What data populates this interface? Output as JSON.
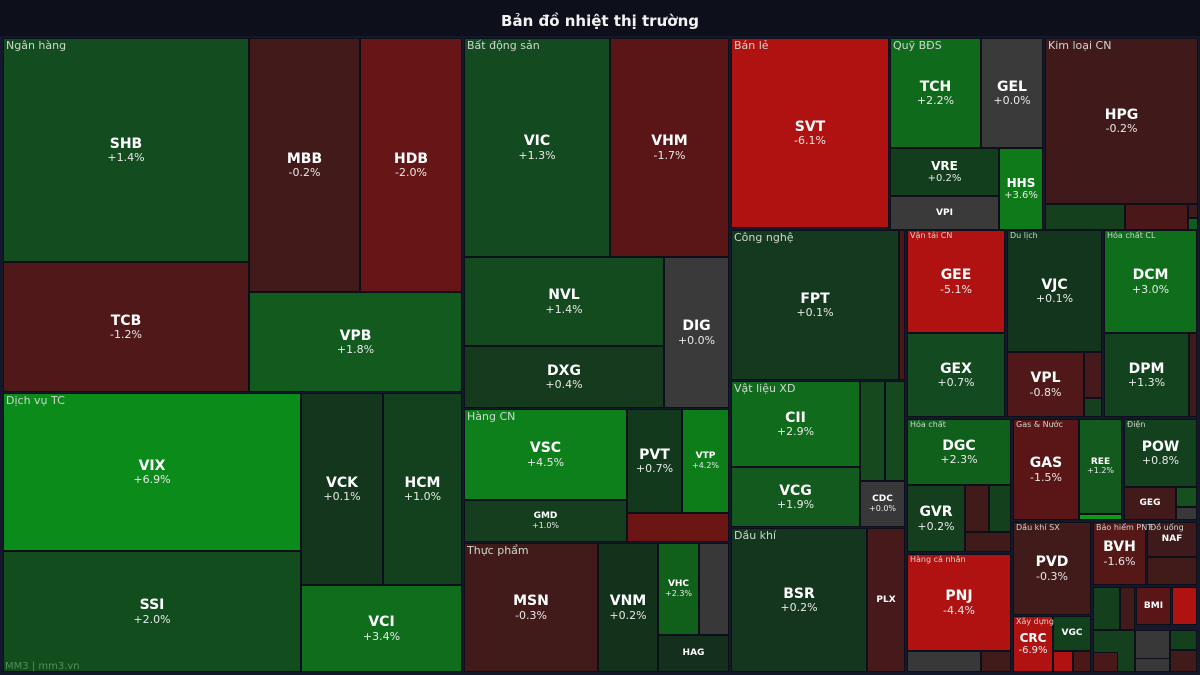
{
  "chart_data": {
    "type": "heatmap",
    "subtype": "treemap",
    "title": "Bản đồ nhiệt thị trường",
    "watermark": "MM3 | mm3.vn",
    "colors": {
      "strong_up": "#0b8c1a",
      "up": "#134d1f",
      "flat": "#3a3a3a",
      "down": "#501818",
      "strong_down": "#b01212"
    },
    "sectors": [
      {
        "name": "Ngân hàng",
        "stocks": [
          {
            "ticker": "SHB",
            "change": "+1.4%",
            "color": "#134d1f"
          },
          {
            "ticker": "MBB",
            "change": "-0.2%",
            "color": "#431a1a"
          },
          {
            "ticker": "HDB",
            "change": "-2.0%",
            "color": "#661616"
          },
          {
            "ticker": "TCB",
            "change": "-1.2%",
            "color": "#501818"
          },
          {
            "ticker": "VPB",
            "change": "+1.8%",
            "color": "#125a1e"
          }
        ]
      },
      {
        "name": "Dịch vụ TC",
        "stocks": [
          {
            "ticker": "VIX",
            "change": "+6.9%",
            "color": "#0b8c1a"
          },
          {
            "ticker": "SSI",
            "change": "+2.0%",
            "color": "#124d1e"
          },
          {
            "ticker": "VCK",
            "change": "+0.1%",
            "color": "#13361d"
          },
          {
            "ticker": "HCM",
            "change": "+1.0%",
            "color": "#13401d"
          },
          {
            "ticker": "VCI",
            "change": "+3.4%",
            "color": "#0f6e1c"
          }
        ]
      },
      {
        "name": "Bất động sản",
        "stocks": [
          {
            "ticker": "VIC",
            "change": "+1.3%",
            "color": "#134a1f"
          },
          {
            "ticker": "VHM",
            "change": "-1.7%",
            "color": "#5a1616"
          },
          {
            "ticker": "NVL",
            "change": "+1.4%",
            "color": "#134a1e"
          },
          {
            "ticker": "DXG",
            "change": "+0.4%",
            "color": "#153a1e"
          },
          {
            "ticker": "DIG",
            "change": "+0.0%",
            "color": "#3a3a3a"
          }
        ]
      },
      {
        "name": "Hàng CN",
        "stocks": [
          {
            "ticker": "VSC",
            "change": "+4.5%",
            "color": "#0d801b"
          },
          {
            "ticker": "GMD",
            "change": "+1.0%",
            "color": "#143e1e"
          },
          {
            "ticker": "PVT",
            "change": "+0.7%",
            "color": "#13391d"
          },
          {
            "ticker": "VTP",
            "change": "+4.2%",
            "color": "#0d7d1a"
          },
          {
            "ticker": "",
            "change": "",
            "color": "#6b1515"
          }
        ]
      },
      {
        "name": "Thực phẩm",
        "stocks": [
          {
            "ticker": "MSN",
            "change": "-0.3%",
            "color": "#411a1a"
          },
          {
            "ticker": "VNM",
            "change": "+0.2%",
            "color": "#13321c"
          },
          {
            "ticker": "VHC",
            "change": "+2.3%",
            "color": "#10601c"
          },
          {
            "ticker": "",
            "change": "",
            "color": "#383838"
          },
          {
            "ticker": "HAG",
            "change": "",
            "color": "#14301c"
          }
        ]
      },
      {
        "name": "Bán lẻ",
        "stocks": [
          {
            "ticker": "SVT",
            "change": "-6.1%",
            "color": "#b01212"
          }
        ]
      },
      {
        "name": "Công nghệ",
        "stocks": [
          {
            "ticker": "FPT",
            "change": "+0.1%",
            "color": "#15391e"
          },
          {
            "ticker": "",
            "change": "",
            "color": "#4a1818"
          }
        ]
      },
      {
        "name": "Vật liệu XD",
        "stocks": [
          {
            "ticker": "CII",
            "change": "+2.9%",
            "color": "#116b1d"
          },
          {
            "ticker": "VCG",
            "change": "+1.9%",
            "color": "#125a1e"
          },
          {
            "ticker": "",
            "change": "",
            "color": "#164a1e"
          },
          {
            "ticker": "",
            "change": "",
            "color": "#154a1e"
          },
          {
            "ticker": "CDC",
            "change": "+0.0%",
            "color": "#383838"
          }
        ]
      },
      {
        "name": "Dầu khí",
        "stocks": [
          {
            "ticker": "BSR",
            "change": "+0.2%",
            "color": "#15361e"
          },
          {
            "ticker": "PLX",
            "change": "",
            "color": "#461a1a"
          }
        ]
      },
      {
        "name": "Quỹ BĐS",
        "stocks": [
          {
            "ticker": "TCH",
            "change": "+2.2%",
            "color": "#106a1c"
          },
          {
            "ticker": "GEL",
            "change": "+0.0%",
            "color": "#3a3a3a"
          },
          {
            "ticker": "VRE",
            "change": "+0.2%",
            "color": "#133e1e"
          },
          {
            "ticker": "VPI",
            "change": "",
            "color": "#3a3a3a"
          },
          {
            "ticker": "HHS",
            "change": "+3.6%",
            "color": "#0f7a1a"
          }
        ]
      },
      {
        "name": "Kim loại CN",
        "stocks": [
          {
            "ticker": "HPG",
            "change": "-0.2%",
            "color": "#401a1a"
          },
          {
            "ticker": "",
            "change": "",
            "color": "#15401e"
          },
          {
            "ticker": "",
            "change": "",
            "color": "#4a1818"
          },
          {
            "ticker": "",
            "change": "",
            "color": "#3e1a1a"
          },
          {
            "ticker": "",
            "change": "",
            "color": "#135a1e"
          }
        ]
      },
      {
        "name": "Vận tải CN",
        "stocks": [
          {
            "ticker": "GEE",
            "change": "-5.1%",
            "color": "#b01212"
          },
          {
            "ticker": "GEX",
            "change": "+0.7%",
            "color": "#134a1f"
          }
        ]
      },
      {
        "name": "Du lịch",
        "stocks": [
          {
            "ticker": "VJC",
            "change": "+0.1%",
            "color": "#13351d"
          },
          {
            "ticker": "VPL",
            "change": "-0.8%",
            "color": "#501818"
          },
          {
            "ticker": "",
            "change": "",
            "color": "#461a1a"
          },
          {
            "ticker": "",
            "change": "",
            "color": "#14401e"
          }
        ]
      },
      {
        "name": "Hóa chất CL",
        "stocks": [
          {
            "ticker": "DCM",
            "change": "+3.0%",
            "color": "#0f6e1c"
          },
          {
            "ticker": "DPM",
            "change": "+1.3%",
            "color": "#13431e"
          },
          {
            "ticker": "",
            "change": "",
            "color": "#3e1a1a"
          }
        ]
      },
      {
        "name": "Hóa chất",
        "stocks": [
          {
            "ticker": "DGC",
            "change": "+2.3%",
            "color": "#10601c"
          },
          {
            "ticker": "GVR",
            "change": "+0.2%",
            "color": "#143e1e"
          },
          {
            "ticker": "",
            "change": "",
            "color": "#411a1a"
          },
          {
            "ticker": "",
            "change": "",
            "color": "#15401e"
          },
          {
            "ticker": "",
            "change": "",
            "color": "#411a1a"
          }
        ]
      },
      {
        "name": "Hàng cá nhân",
        "stocks": [
          {
            "ticker": "PNJ",
            "change": "-4.4%",
            "color": "#b01212"
          },
          {
            "ticker": "",
            "change": "",
            "color": "#383838"
          },
          {
            "ticker": "",
            "change": "",
            "color": "#411a1a"
          }
        ]
      },
      {
        "name": "Gas & Nước",
        "stocks": [
          {
            "ticker": "GAS",
            "change": "-1.5%",
            "color": "#5a1616"
          },
          {
            "ticker": "REE",
            "change": "+1.2%",
            "color": "#135a1e"
          },
          {
            "ticker": "",
            "change": "",
            "color": "#0b9a1a"
          }
        ]
      },
      {
        "name": "Điện",
        "stocks": [
          {
            "ticker": "POW",
            "change": "+0.8%",
            "color": "#13401d"
          },
          {
            "ticker": "GEG",
            "change": "",
            "color": "#431a1a"
          },
          {
            "ticker": "",
            "change": "",
            "color": "#15501e"
          },
          {
            "ticker": "",
            "change": "",
            "color": "#383838"
          }
        ]
      },
      {
        "name": "Dầu khí SX",
        "stocks": [
          {
            "ticker": "PVD",
            "change": "-0.3%",
            "color": "#411a1a"
          }
        ]
      },
      {
        "name": "Xây dựng",
        "stocks": [
          {
            "ticker": "CRC",
            "change": "-6.9%",
            "color": "#b01212"
          },
          {
            "ticker": "VGC",
            "change": "",
            "color": "#13401d"
          },
          {
            "ticker": "",
            "change": "",
            "color": "#b01212"
          },
          {
            "ticker": "",
            "change": "",
            "color": "#4a1818"
          }
        ]
      },
      {
        "name": "Bảo hiểm PNT",
        "stocks": [
          {
            "ticker": "BVH",
            "change": "-1.6%",
            "color": "#561717"
          }
        ]
      },
      {
        "name": "Đồ uống",
        "stocks": [
          {
            "ticker": "NAF",
            "change": "",
            "color": "#3e1a1a"
          },
          {
            "ticker": "",
            "change": "",
            "color": "#411a1a"
          }
        ]
      },
      {
        "name": "",
        "stocks": [
          {
            "ticker": "",
            "change": "",
            "color": "#15401e"
          },
          {
            "ticker": "",
            "change": "",
            "color": "#411a1a"
          },
          {
            "ticker": "",
            "change": "",
            "color": "#15401e"
          },
          {
            "ticker": "",
            "change": "",
            "color": "#383838"
          },
          {
            "ticker": "BMI",
            "change": "",
            "color": "#5a1616"
          },
          {
            "ticker": "",
            "change": "",
            "color": "#b01212"
          },
          {
            "ticker": "",
            "change": "",
            "color": "#15401e"
          },
          {
            "ticker": "",
            "change": "",
            "color": "#411a1a"
          },
          {
            "ticker": "",
            "change": "",
            "color": "#383838"
          },
          {
            "ticker": "",
            "change": "",
            "color": "#4a1818"
          }
        ]
      }
    ]
  }
}
